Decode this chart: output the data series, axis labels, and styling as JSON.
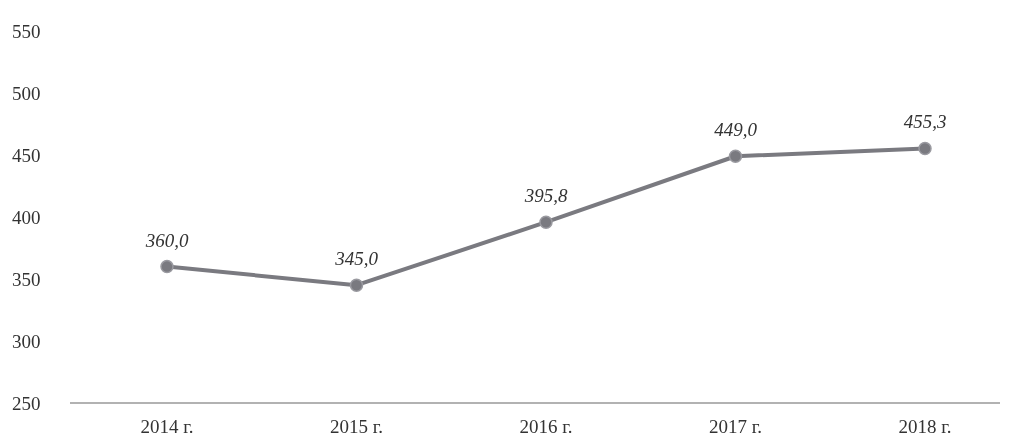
{
  "chart_data": {
    "type": "line",
    "categories": [
      "2014 г.",
      "2015 г.",
      "2016 г.",
      "2017 г.",
      "2018 г."
    ],
    "series": [
      {
        "color": "#7a7a80",
        "values": [
          360.0,
          345.0,
          395.8,
          449.0,
          455.3
        ]
      }
    ],
    "value_labels": [
      "360,0",
      "345,0",
      "395,8",
      "449,0",
      "455,3"
    ],
    "ylim": [
      250,
      550
    ],
    "yticks": [
      250,
      300,
      350,
      400,
      450,
      500,
      550
    ],
    "grid": false,
    "marker": "circle",
    "line_style": "solid"
  }
}
